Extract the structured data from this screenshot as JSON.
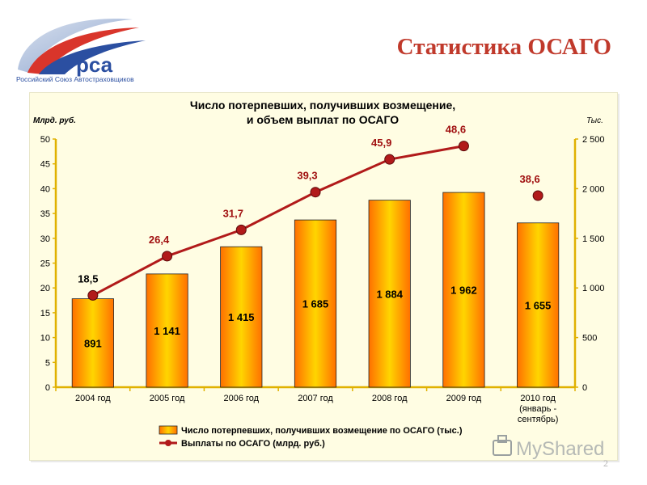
{
  "header": {
    "title": "Статистика ОСАГО",
    "logo_text": "рса",
    "org_name": "Российский Союз Автостраховщиков"
  },
  "footer": {
    "page_number": "2",
    "watermark": "MyShared"
  },
  "chart_data": {
    "type": "bar",
    "title_line1": "Число потерпевших, получивших возмещение,",
    "title_line2": "и объем выплат по ОСАГО",
    "left_axis_label": "Млрд. руб.",
    "right_axis_label": "Тыс.",
    "categories": [
      [
        "2004 год"
      ],
      [
        "2005 год"
      ],
      [
        "2006 год"
      ],
      [
        "2007 год"
      ],
      [
        "2008 год"
      ],
      [
        "2009 год"
      ],
      [
        "2010 год",
        "(январь -",
        "сентябрь)"
      ]
    ],
    "left_ticks": [
      "0",
      "5",
      "10",
      "15",
      "20",
      "25",
      "30",
      "35",
      "40",
      "45",
      "50"
    ],
    "right_ticks": [
      "0",
      "500",
      "1 000",
      "1 500",
      "2 000",
      "2 500"
    ],
    "left_ylim": [
      0,
      50
    ],
    "right_ylim": [
      0,
      2500
    ],
    "series": [
      {
        "name": "Число потерпевших, получивших возмещение по ОСАГО (тыс.)",
        "type": "bar",
        "axis": "right",
        "values": [
          891,
          1141,
          1415,
          1685,
          1884,
          1962,
          1655
        ],
        "labels": [
          "891",
          "1 141",
          "1 415",
          "1 685",
          "1 884",
          "1 962",
          "1 655"
        ]
      },
      {
        "name": "Выплаты по ОСАГО (млрд. руб.)",
        "type": "line",
        "axis": "left",
        "values": [
          18.5,
          26.4,
          31.7,
          39.3,
          45.9,
          48.6,
          38.6
        ],
        "labels": [
          "18,5",
          "26,4",
          "31,7",
          "39,3",
          "45,9",
          "48,6",
          "38,6"
        ],
        "connected_points": 6
      }
    ],
    "colors": {
      "bar_center": "#ffd200",
      "bar_edge": "#ff6a00",
      "axis": "#e0b100",
      "line": "#b11a1a",
      "label": "#a01010"
    },
    "legend_position": "bottom-center"
  }
}
